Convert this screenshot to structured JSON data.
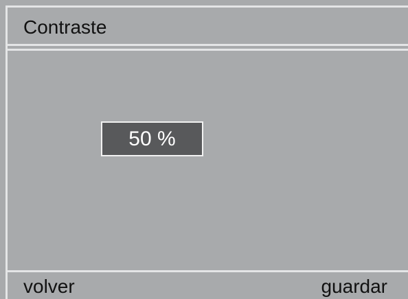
{
  "header": {
    "title": "Contraste"
  },
  "display": {
    "value": "50 %"
  },
  "footer": {
    "left": "volver",
    "right": "guardar"
  }
}
